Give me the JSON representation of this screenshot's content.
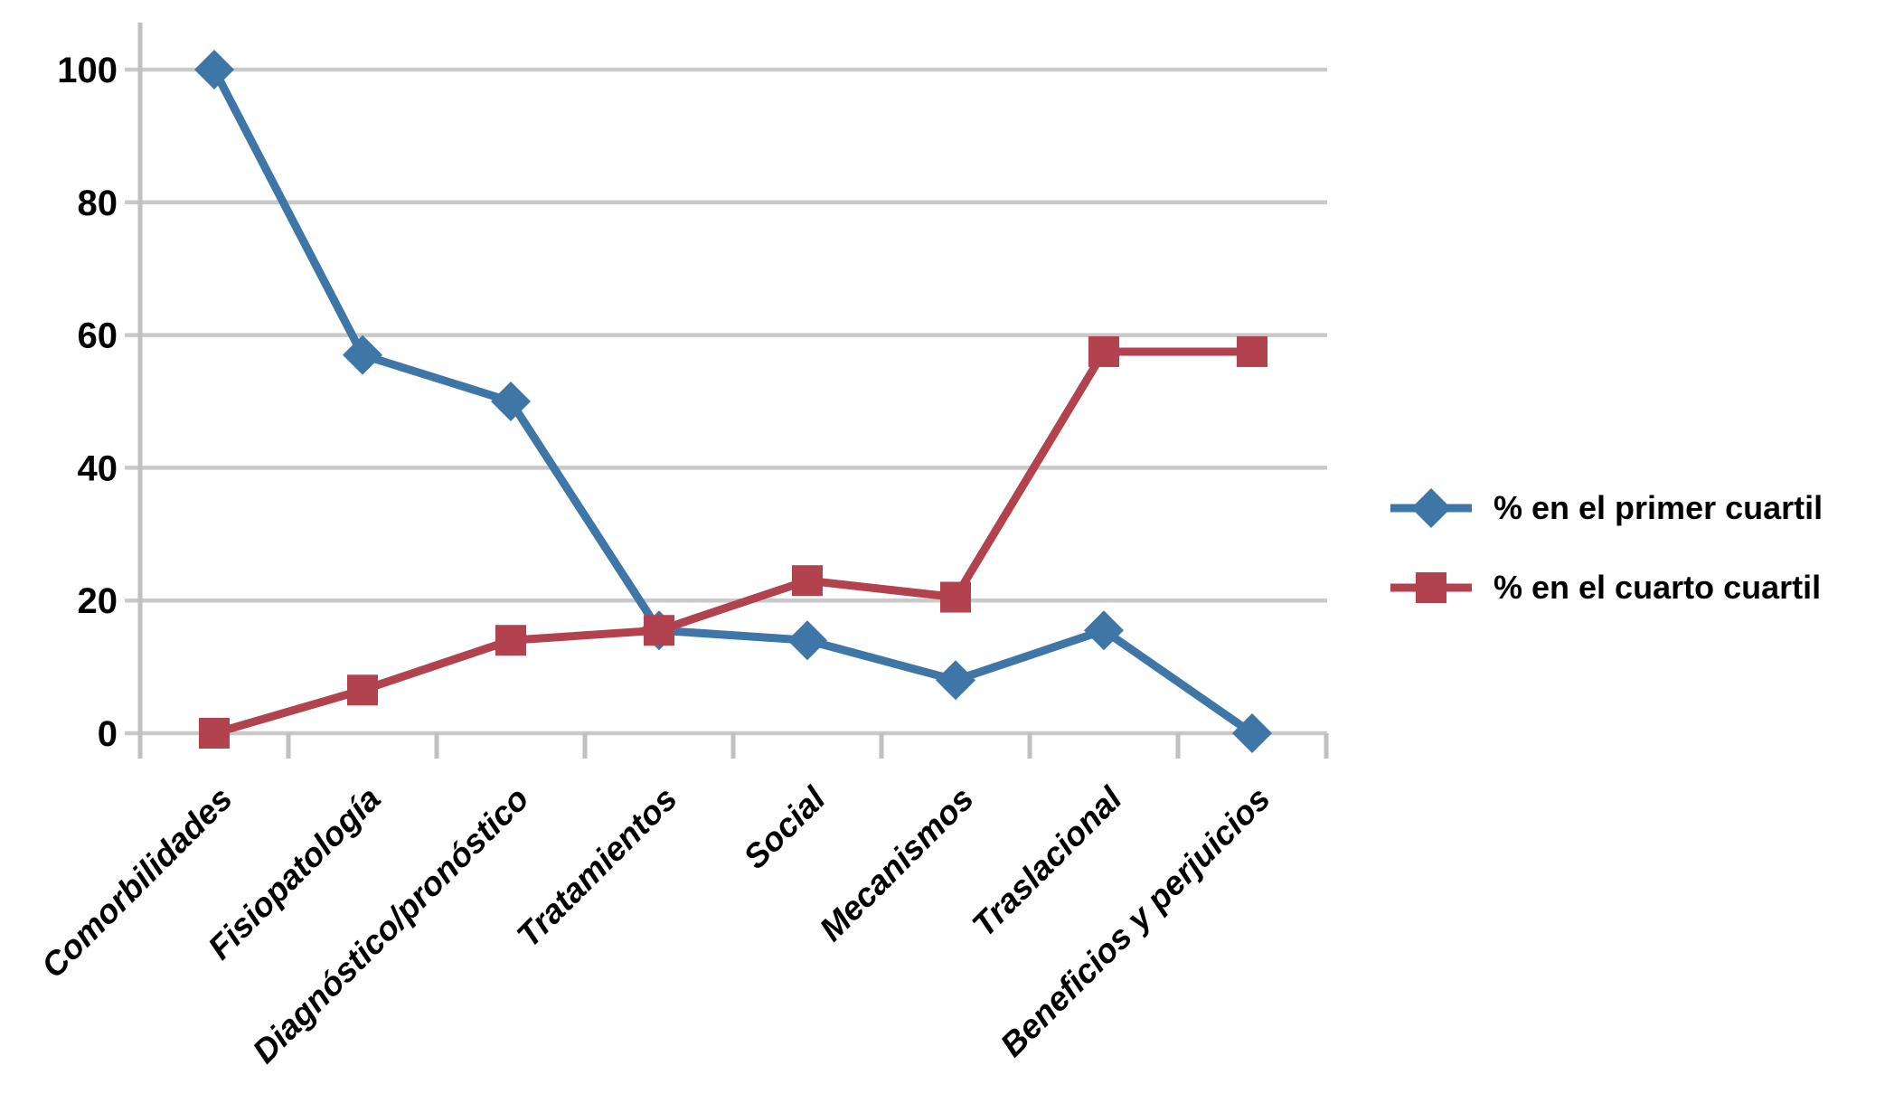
{
  "chart_data": {
    "type": "line",
    "title": "",
    "xlabel": "",
    "ylabel": "",
    "categories": [
      "Comorbilidades",
      "Fisiopatología",
      "Diagnóstico/pronóstico",
      "Tratamientos",
      "Social",
      "Mecanismos",
      "Traslacional",
      "Beneficios y perjuicios"
    ],
    "series": [
      {
        "name": "% en el primer cuartil",
        "marker": "diamond",
        "color": "#3E76A8",
        "values": [
          100,
          57,
          50,
          15.5,
          14,
          8,
          15.5,
          0
        ]
      },
      {
        "name": "% en el cuarto cuartil",
        "marker": "square",
        "color": "#B2424E",
        "values": [
          0,
          6.5,
          14,
          15.5,
          23,
          20.5,
          57.5,
          57.5
        ]
      }
    ],
    "ylim": [
      0,
      100
    ],
    "y_ticks": [
      0,
      20,
      40,
      60,
      80,
      100
    ],
    "grid": "horizontal",
    "legend_position": "right"
  },
  "colors": {
    "gridline": "#C9C9C9",
    "axis": "#C0C0C0",
    "background": "#FFFFFF",
    "text": "#000000"
  }
}
